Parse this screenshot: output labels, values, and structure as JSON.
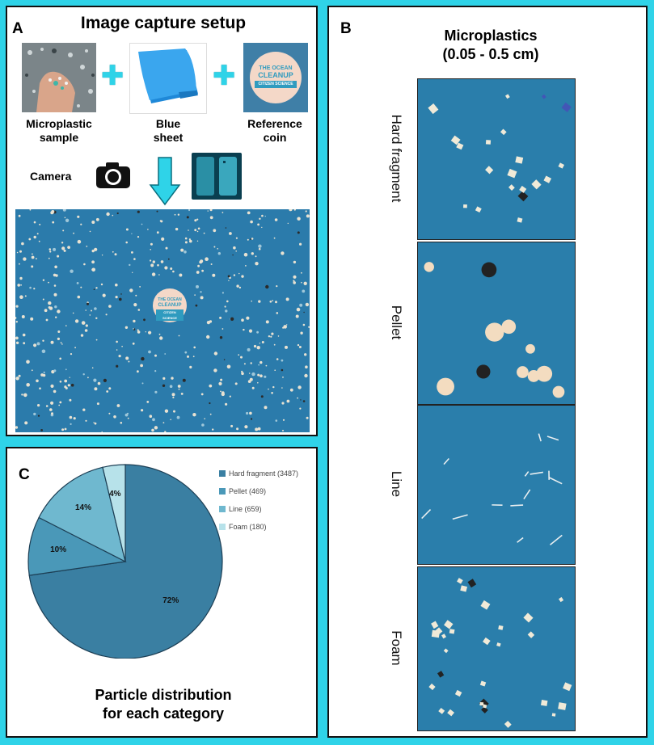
{
  "panel_a": {
    "letter": "A",
    "title": "Image capture setup",
    "items": [
      {
        "label_line1": "Microplastic",
        "label_line2": "sample"
      },
      {
        "label_line1": "Blue",
        "label_line2": "sheet"
      },
      {
        "label_line1": "Reference",
        "label_line2": "coin"
      }
    ],
    "coin_line1": "THE OCEAN",
    "coin_line2": "CLEANUP",
    "coin_line3": "CITIZEN SCIENCE",
    "camera_label": "Camera"
  },
  "panel_b": {
    "letter": "B",
    "title_line1": "Microplastics",
    "title_line2": "(0.05 - 0.5 cm)",
    "rows": [
      "Hard fragment",
      "Pellet",
      "Line",
      "Foam"
    ]
  },
  "panel_c": {
    "letter": "C",
    "caption_line1": "Particle distribution",
    "caption_line2": "for each category"
  },
  "chart_data": {
    "type": "pie",
    "categories": [
      "Hard fragment",
      "Pellet",
      "Line",
      "Foam"
    ],
    "values": [
      3487,
      469,
      659,
      180
    ],
    "percent_labels": [
      "72%",
      "10%",
      "14%",
      "4%"
    ],
    "legend_labels": [
      "Hard fragment (3487)",
      "Pellet (469)",
      "Line (659)",
      "Foam (180)"
    ],
    "colors": [
      "#3a7fa2",
      "#4a98b8",
      "#6fb8cf",
      "#b7e2ea"
    ],
    "legend_position": "top-right"
  }
}
